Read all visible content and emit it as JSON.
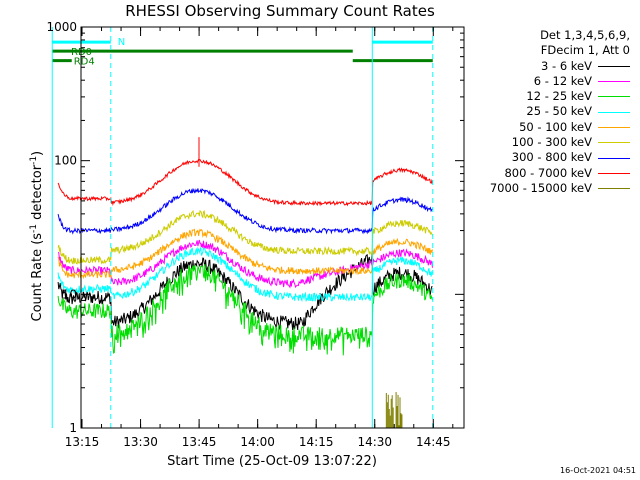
{
  "chart_data": {
    "type": "line",
    "title": "RHESSI Observing Summary Count Rates",
    "xlabel": "Start Time (25-Oct-09 13:07:22)",
    "ylabel_parts": {
      "main": "Count Rate (s",
      "sup1": "-1",
      "mid": " detector",
      "sup2": "-1",
      "end": ")"
    },
    "yscale": "log",
    "ylim": [
      1,
      1000
    ],
    "xlim_min": [
      7.37,
      105.5
    ],
    "x_unit": "minutes after 13:07:22",
    "x_ticks": [
      {
        "label": "13:15",
        "min": 7.63
      },
      {
        "label": "13:30",
        "min": 22.63
      },
      {
        "label": "13:45",
        "min": 37.63
      },
      {
        "label": "14:00",
        "min": 52.63
      },
      {
        "label": "14:15",
        "min": 67.63
      },
      {
        "label": "14:30",
        "min": 82.63
      },
      {
        "label": "14:45",
        "min": 97.63
      }
    ],
    "y_ticks": [
      {
        "label": "1",
        "value": 1
      },
      {
        "label": "10",
        "value": 10
      },
      {
        "label": "100",
        "value": 100
      },
      {
        "label": "1000",
        "value": 1000
      }
    ],
    "night_boundaries_min": [
      0,
      15.0,
      82.0,
      97.5
    ],
    "flags": [
      {
        "label": "N",
        "color": "#00ffff",
        "segments": [
          [
            0,
            15.0
          ],
          [
            82.0,
            97.5
          ]
        ],
        "level": 770
      },
      {
        "label": "RD0",
        "color": "#007f00",
        "segments": [
          [
            0,
            77.0
          ]
        ],
        "level": 660
      },
      {
        "label": "RD4",
        "color": "#007f00",
        "segments": [
          [
            0,
            5.0
          ],
          [
            77.0,
            97.5
          ]
        ],
        "level": 560
      }
    ],
    "legend_header": [
      "Det 1,3,4,5,6,9,",
      "FDecim 1, Att 0"
    ],
    "series": [
      {
        "name": "3 - 6 keV",
        "color": "#000000",
        "sun": [
          8.5,
          9.5
        ],
        "peak": 17,
        "low": 6.0,
        "noise": 0.12
      },
      {
        "name": "6 - 12 keV",
        "color": "#ff00ff",
        "sun": [
          14.5,
          15.0
        ],
        "peak": 24,
        "low": 12,
        "noise": 0.07
      },
      {
        "name": "12 - 25 keV",
        "color": "#00dd00",
        "sun": [
          7.0,
          7.5
        ],
        "peak": 15,
        "low": 5.0,
        "noise": 0.14
      },
      {
        "name": "25 - 50 keV",
        "color": "#00ffff",
        "sun": [
          10.0,
          11.0
        ],
        "peak": 21,
        "low": 9.5,
        "noise": 0.07
      },
      {
        "name": "50 - 100 keV",
        "color": "#ffa500",
        "sun": [
          13.0,
          14.0
        ],
        "peak": 29,
        "low": 15,
        "noise": 0.06
      },
      {
        "name": "100 - 300 keV",
        "color": "#cccc00",
        "sun": [
          17.0,
          18.0
        ],
        "peak": 40,
        "low": 21,
        "noise": 0.06
      },
      {
        "name": "300 - 800 keV",
        "color": "#0000ff",
        "sun": [
          28.0,
          30.0
        ],
        "peak": 60,
        "low": 30,
        "noise": 0.04
      },
      {
        "name": "800 - 7000 keV",
        "color": "#ff0000",
        "sun": [
          50.0,
          52.0
        ],
        "peak": 100,
        "low": 48,
        "noise": 0.03
      },
      {
        "name": "7000 - 15000 keV",
        "color": "#808000",
        "sun": [
          null,
          null
        ],
        "peak": 1.9,
        "low": 1,
        "noise": 0
      }
    ]
  },
  "footer": {
    "timestamp": "16-Oct-2021 04:51"
  }
}
